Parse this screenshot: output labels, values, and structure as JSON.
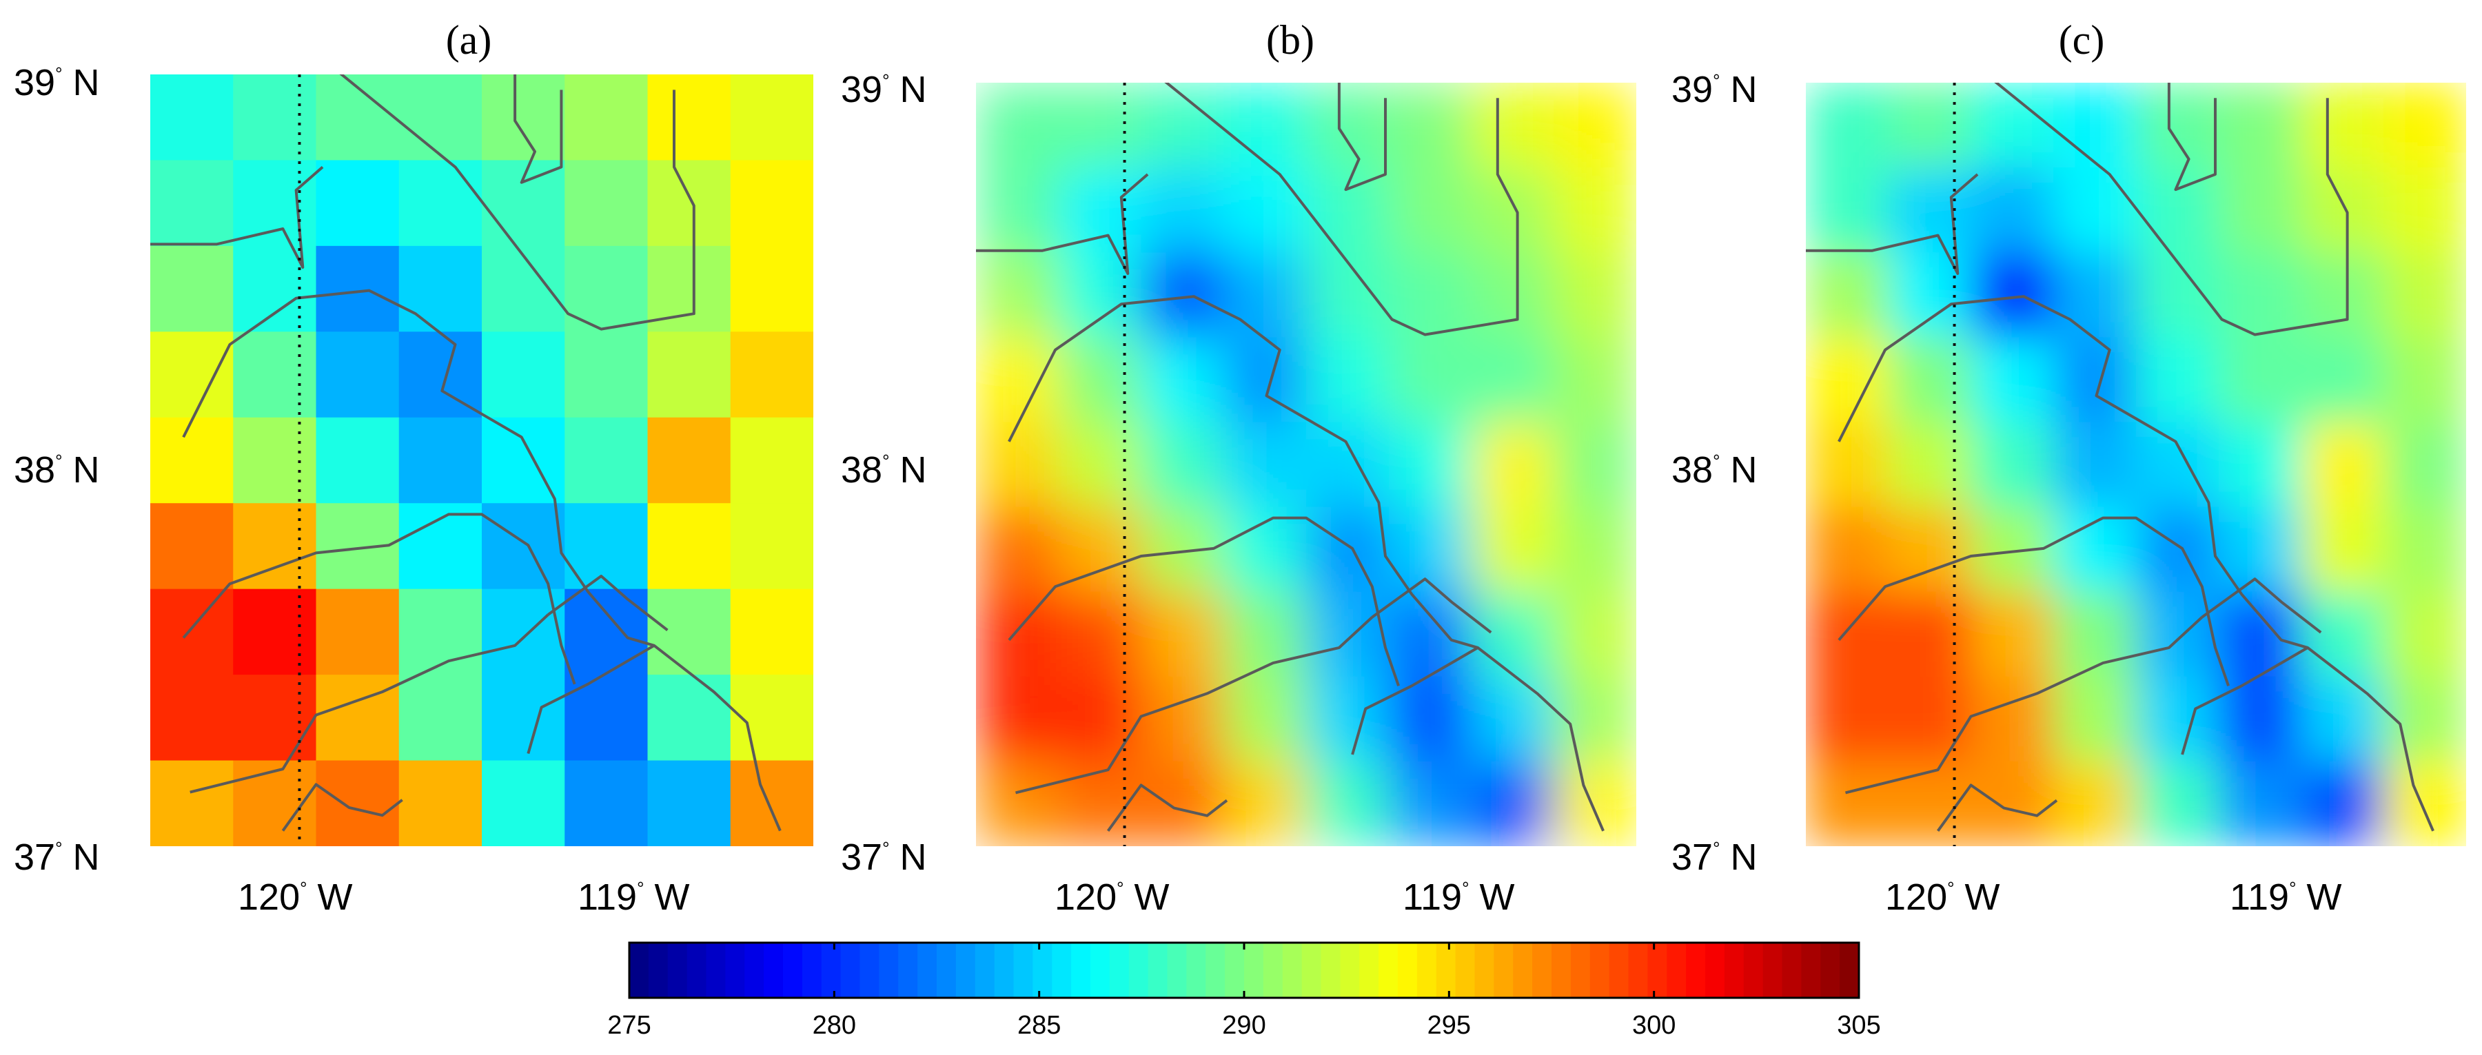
{
  "panels": [
    {
      "id": "a",
      "title": "(a)",
      "lat_labels": [
        "39",
        "38",
        "37"
      ],
      "lat_hemisphere": "N",
      "lon_labels": [
        "120",
        "119"
      ],
      "lon_hemisphere": "W"
    },
    {
      "id": "b",
      "title": "(b)",
      "lat_labels": [
        "39",
        "38",
        "37"
      ],
      "lat_hemisphere": "N",
      "lon_labels": [
        "120",
        "119"
      ],
      "lon_hemisphere": "W"
    },
    {
      "id": "c",
      "title": "(c)",
      "lat_labels": [
        "39",
        "38",
        "37"
      ],
      "lat_hemisphere": "N",
      "lon_labels": [
        "120",
        "119"
      ],
      "lon_hemisphere": "W"
    }
  ],
  "colorbar": {
    "ticks": [
      "275",
      "280",
      "285",
      "290",
      "295",
      "300",
      "305"
    ],
    "colormap": "jet",
    "colors": [
      "#00008f",
      "#0000ff",
      "#00ffff",
      "#ffff00",
      "#ff0000",
      "#800000"
    ]
  },
  "chart_data": {
    "type": "heatmap",
    "colorbar_range": [
      275,
      305
    ],
    "colorbar_ticks": [
      275,
      280,
      285,
      290,
      295,
      300,
      305
    ],
    "lat_range": [
      37,
      39
    ],
    "lon_range": [
      -120.45,
      -118.45
    ],
    "meridian_dotted": -120,
    "panels": [
      {
        "title": "(a)",
        "grid_rows": 9,
        "grid_cols": 8,
        "values": [
          [
            287,
            288,
            289,
            289,
            290,
            291,
            294,
            293
          ],
          [
            288,
            287,
            286,
            287,
            288,
            290,
            292,
            294
          ],
          [
            290,
            287,
            283,
            285,
            288,
            289,
            291,
            294
          ],
          [
            293,
            289,
            284,
            283,
            287,
            289,
            292,
            295
          ],
          [
            294,
            291,
            287,
            284,
            286,
            288,
            296,
            293
          ],
          [
            298,
            296,
            290,
            286,
            284,
            285,
            294,
            293
          ],
          [
            300,
            301,
            297,
            289,
            285,
            282,
            290,
            294
          ],
          [
            300,
            300,
            296,
            289,
            285,
            282,
            288,
            293
          ],
          [
            296,
            297,
            298,
            296,
            287,
            283,
            284,
            297
          ]
        ]
      },
      {
        "title": "(b)",
        "grid_rows": 9,
        "grid_cols": 8,
        "values": [
          [
            289,
            289,
            288,
            287,
            289,
            290,
            293,
            294
          ],
          [
            289,
            286,
            285,
            286,
            288,
            290,
            291,
            293
          ],
          [
            291,
            287,
            281,
            284,
            288,
            289,
            290,
            292
          ],
          [
            294,
            290,
            286,
            283,
            287,
            289,
            289,
            291
          ],
          [
            295,
            292,
            288,
            285,
            285,
            287,
            294,
            290
          ],
          [
            298,
            296,
            291,
            287,
            283,
            285,
            293,
            291
          ],
          [
            300,
            299,
            296,
            290,
            284,
            282,
            288,
            292
          ],
          [
            300,
            300,
            297,
            291,
            285,
            281,
            285,
            291
          ],
          [
            297,
            298,
            298,
            295,
            288,
            283,
            281,
            294
          ]
        ]
      },
      {
        "title": "(c)",
        "grid_rows": 9,
        "grid_cols": 8,
        "values": [
          [
            288,
            289,
            287,
            286,
            289,
            290,
            293,
            294
          ],
          [
            288,
            285,
            284,
            286,
            288,
            290,
            292,
            293
          ],
          [
            291,
            286,
            280,
            284,
            288,
            289,
            290,
            292
          ],
          [
            294,
            290,
            286,
            283,
            287,
            289,
            289,
            291
          ],
          [
            295,
            292,
            288,
            284,
            285,
            287,
            294,
            290
          ],
          [
            297,
            296,
            291,
            286,
            283,
            285,
            293,
            291
          ],
          [
            299,
            299,
            296,
            290,
            284,
            281,
            288,
            292
          ],
          [
            299,
            299,
            297,
            291,
            285,
            281,
            285,
            291
          ],
          [
            297,
            297,
            297,
            295,
            288,
            283,
            281,
            294
          ]
        ]
      }
    ]
  }
}
